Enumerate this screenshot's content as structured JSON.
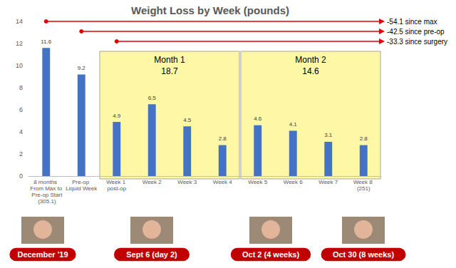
{
  "chart_data": {
    "type": "bar",
    "title": "Weight Loss by Week (pounds)",
    "categories": [
      "8 months From Max to Pre-op Start (305.1)",
      "Pre-op Liquid Week",
      "Week 1 post-op",
      "Week 2",
      "Week 3",
      "Week 4",
      "Week 5",
      "Week 6",
      "Week 7",
      "Week 8 (251)"
    ],
    "values": [
      11.6,
      9.2,
      4.9,
      6.5,
      4.5,
      2.8,
      4.6,
      4.1,
      3.1,
      2.8
    ],
    "color": "#4472c4",
    "ylim": [
      0,
      14
    ],
    "yticks": [
      0,
      2,
      4,
      6,
      8,
      10,
      12,
      14
    ],
    "grid": false,
    "data_labels": true,
    "annotations": {
      "months": [
        {
          "label": "Month 1",
          "total": 18.7
        },
        {
          "label": "Month 2",
          "total": 14.6
        }
      ],
      "arrows": [
        "-54.1 since max",
        "-42.5 since pre-op",
        "-33.3 since surgery"
      ],
      "photo_captions": [
        "December '19",
        "Sept 6 (day 2)",
        "Oct 2 (4 weeks)",
        "Oct 30 (8 weeks)"
      ]
    }
  }
}
